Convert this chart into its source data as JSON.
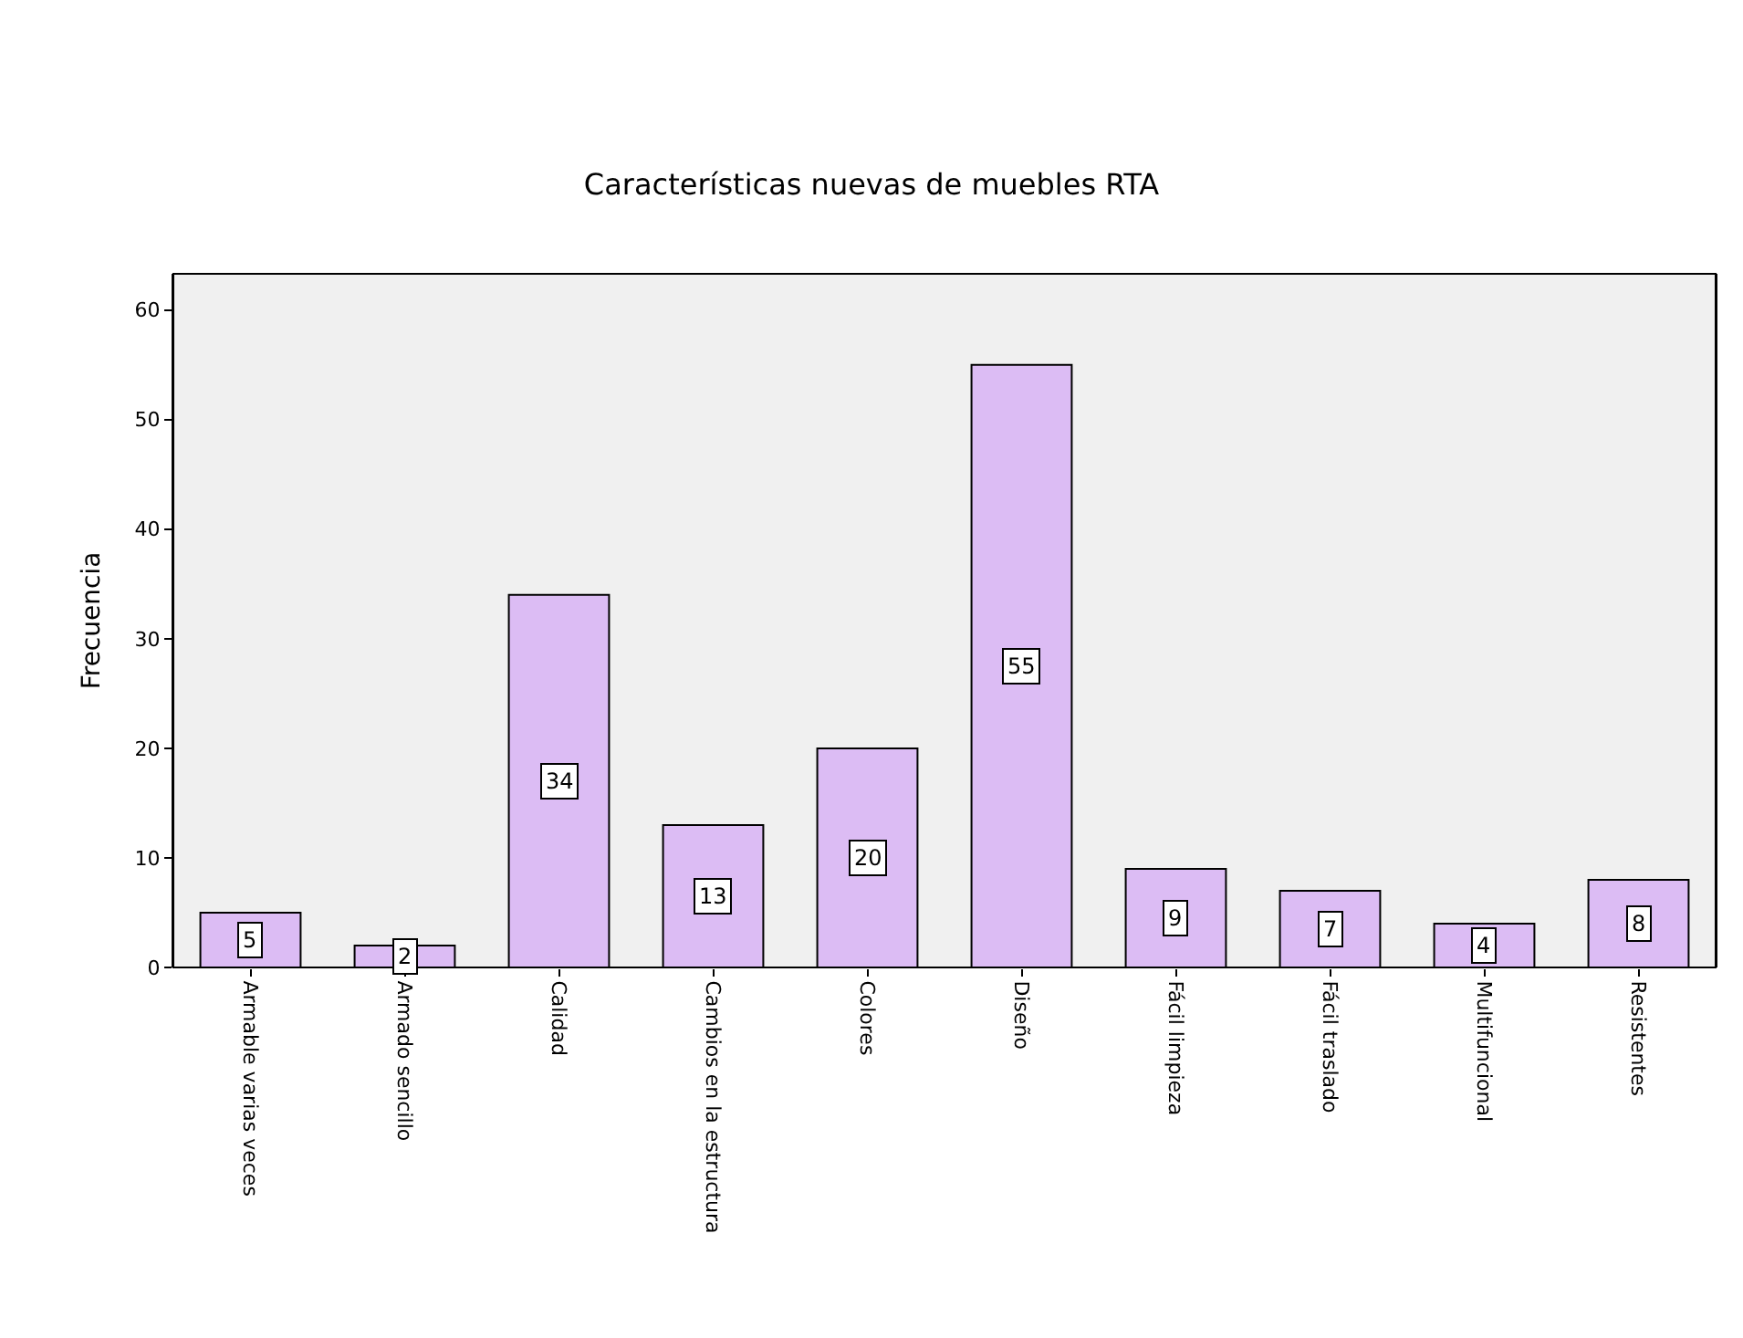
{
  "chart_data": {
    "type": "bar",
    "title": "Características nuevas de muebles RTA",
    "ylabel": "Frecuencia",
    "categories": [
      "Armable varias veces",
      "Armado sencillo",
      "Calidad",
      "Cambios en la estructura",
      "Colores",
      "Diseño",
      "Fácil limpieza",
      "Fácil traslado",
      "Multifuncional",
      "Resistentes"
    ],
    "values": [
      5,
      2,
      34,
      13,
      20,
      55,
      9,
      7,
      4,
      8
    ],
    "color": "#dcbcf4",
    "ylim": [
      0,
      63.3
    ],
    "yticks": [
      0,
      10,
      20,
      30,
      40,
      50,
      60
    ],
    "grid": false,
    "legend": false,
    "data_labels": true
  }
}
